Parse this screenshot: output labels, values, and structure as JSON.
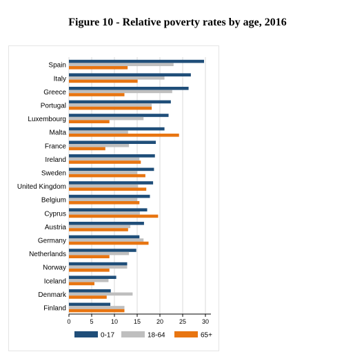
{
  "title": "Figure 10 - Relative poverty rates by age, 2016",
  "chart_data": {
    "type": "bar",
    "orientation": "horizontal",
    "title": "Figure 10 - Relative poverty rates by age, 2016",
    "xlabel": "",
    "ylabel": "",
    "xlim": [
      0,
      30
    ],
    "x_ticks": [
      0,
      5,
      10,
      15,
      20,
      25,
      30
    ],
    "grid": true,
    "legend_position": "bottom",
    "categories": [
      "Spain",
      "Italy",
      "Greece",
      "Portugal",
      "Luxembourg",
      "Malta",
      "France",
      "Ireland",
      "Sweden",
      "United Kingdom",
      "Belgium",
      "Cyprus",
      "Austria",
      "Germany",
      "Netherlands",
      "Norway",
      "Iceland",
      "Denmark",
      "Finland"
    ],
    "series": [
      {
        "name": "0-17",
        "color": "#1f4e79",
        "values": [
          29.7,
          26.8,
          26.3,
          22.4,
          21.9,
          21.0,
          19.1,
          18.9,
          18.7,
          18.5,
          17.8,
          17.2,
          16.5,
          15.5,
          14.8,
          12.8,
          10.4,
          9.2,
          9.1
        ]
      },
      {
        "name": "18-64",
        "color": "#bfbfbf",
        "values": [
          23.0,
          21.0,
          22.7,
          18.2,
          16.4,
          13.0,
          13.2,
          15.5,
          15.0,
          15.2,
          15.0,
          15.6,
          13.5,
          16.4,
          13.2,
          12.8,
          8.7,
          14.0,
          12.2
        ]
      },
      {
        "name": "65+",
        "color": "#e87511",
        "values": [
          12.9,
          15.1,
          12.2,
          18.2,
          8.9,
          24.2,
          8.0,
          15.8,
          16.8,
          17.0,
          15.5,
          19.6,
          13.0,
          17.5,
          8.9,
          8.9,
          5.6,
          8.3,
          12.2
        ]
      }
    ]
  }
}
